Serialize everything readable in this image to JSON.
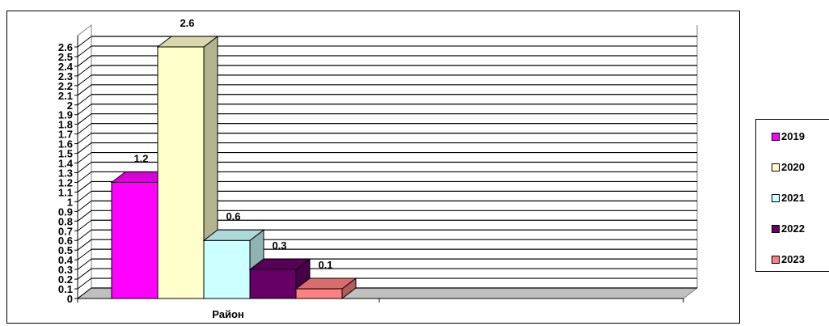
{
  "chart_data": {
    "type": "bar",
    "categories": [
      "Район"
    ],
    "series": [
      {
        "name": "2019",
        "values": [
          1.2
        ],
        "color": "#FF00FF"
      },
      {
        "name": "2020",
        "values": [
          2.6
        ],
        "color": "#FFFFCC"
      },
      {
        "name": "2021",
        "values": [
          0.6
        ],
        "color": "#CCFFFF"
      },
      {
        "name": "2022",
        "values": [
          0.3
        ],
        "color": "#660066"
      },
      {
        "name": "2023",
        "values": [
          0.1
        ],
        "color": "#FF8080"
      }
    ],
    "data_labels": [
      "1.2",
      "2.6",
      "0.6",
      "0.3",
      "0.1"
    ],
    "yticks": [
      "0",
      "0.1",
      "0.2",
      "0.3",
      "0.4",
      "0.5",
      "0.6",
      "0.7",
      "0.8",
      "0.9",
      "1",
      "1.1",
      "1.2",
      "1.3",
      "1.4",
      "1.5",
      "1.6",
      "1.7",
      "1.8",
      "1.9",
      "2",
      "2.1",
      "2.2",
      "2.3",
      "2.4",
      "2.5",
      "2.6"
    ],
    "ylim": [
      0,
      2.6
    ],
    "grid": true,
    "legend_position": "right",
    "title": "",
    "xlabel": "",
    "ylabel": "",
    "three_d": true
  }
}
